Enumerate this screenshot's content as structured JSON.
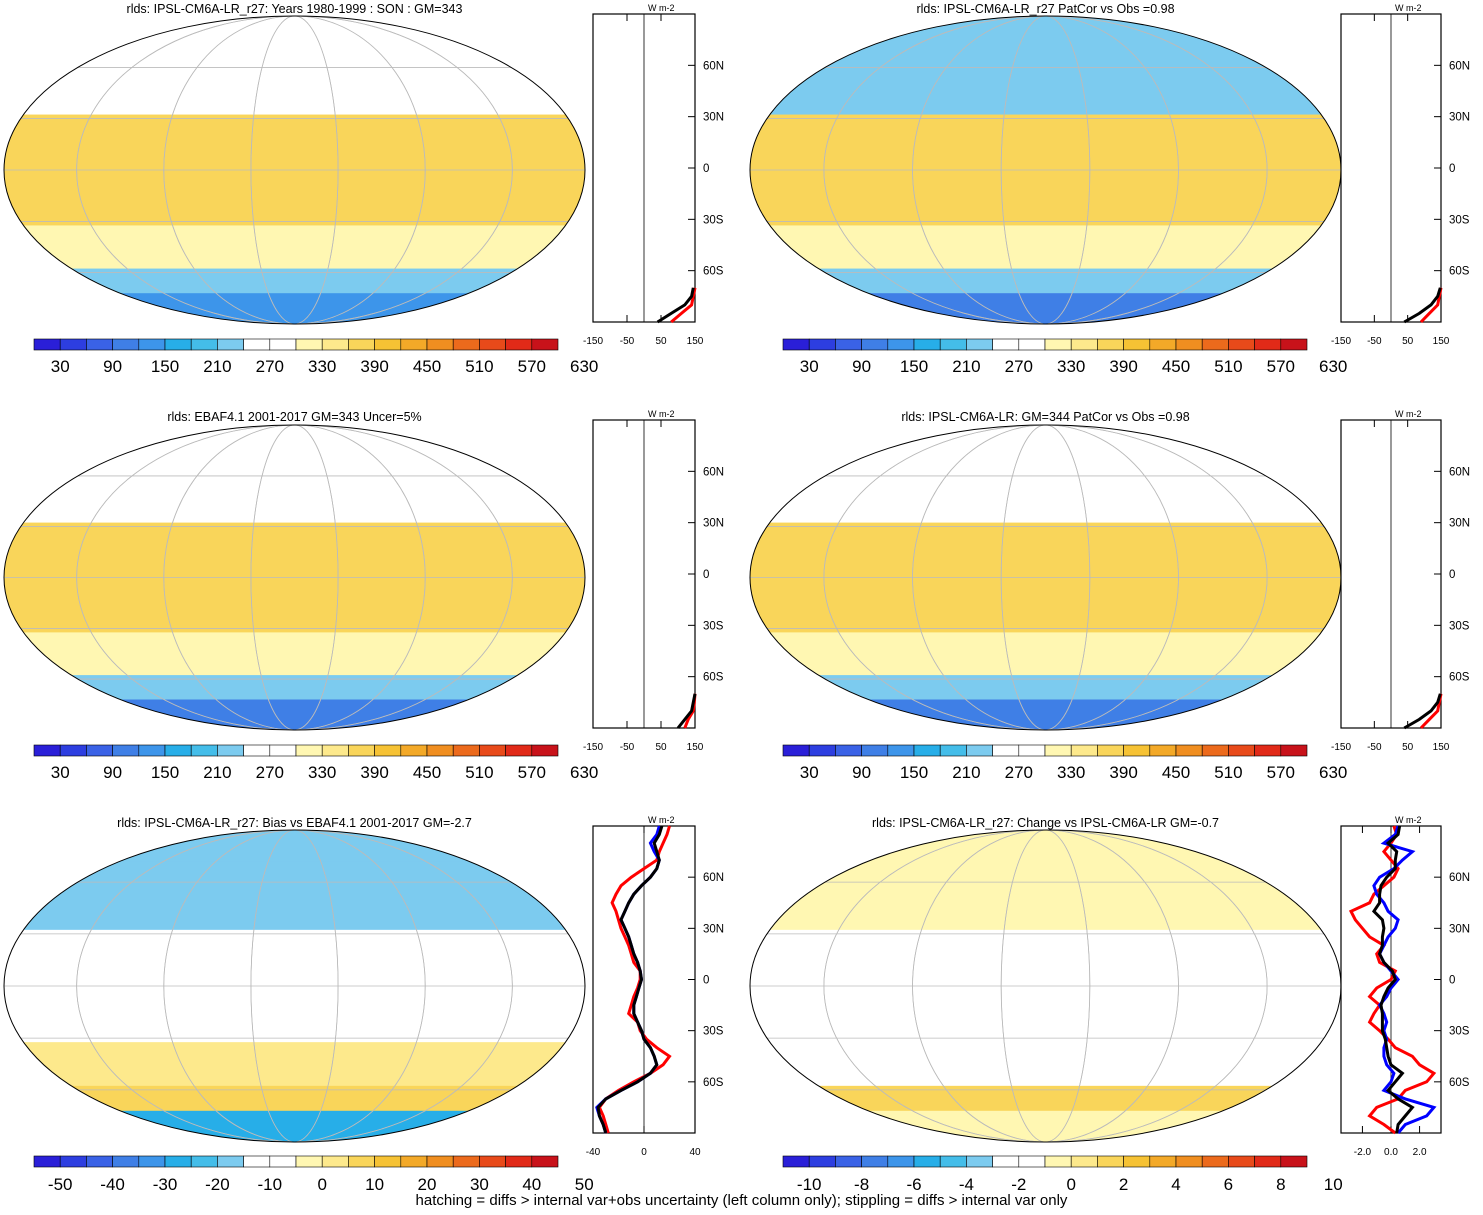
{
  "footnote": "hatching = diffs > internal var+obs uncertainty (left column only); stippling = diffs > internal var only",
  "colors": {
    "scale": [
      "#2a1fd8",
      "#2d3ee0",
      "#3a62e6",
      "#3f7fe6",
      "#3d95ea",
      "#27aee8",
      "#44bde9",
      "#7ccbef",
      "#ffffff",
      "#ffffff",
      "#fff7b2",
      "#fde98c",
      "#f9d55a",
      "#f6c234",
      "#f3a928",
      "#f08e20",
      "#ec6a1c",
      "#e84a1a",
      "#e12a18",
      "#c8121a"
    ],
    "land_outline": "#000000",
    "grid": "#bbbbbb",
    "profile_red": "#ff0000",
    "profile_blue": "#0000ff",
    "profile_black": "#000000"
  },
  "chart_data": [
    {
      "type": "heatmap",
      "panel": "model_mean",
      "title": "rlds: IPSL-CM6A-LR_r27: Years 1980-1999 : SON : GM=343",
      "colorbar_labels": [
        "30",
        "90",
        "150",
        "210",
        "270",
        "330",
        "390",
        "450",
        "510",
        "570",
        "630"
      ],
      "field": {
        "tropics": 420,
        "midlat_north": 280,
        "midlat_south": 330,
        "southern_ocean": 240,
        "antarctica": 140
      },
      "profile": {
        "unit_label": "W m-2",
        "x_ticks": [
          "-150",
          "-50",
          "50",
          "150"
        ],
        "xlim": [
          -150,
          150
        ],
        "y_ticks": [
          "60N",
          "30N",
          "0",
          "30S",
          "60S"
        ],
        "series": [
          {
            "color": "red",
            "lat": [
              -90,
              -85,
              -80,
              -75,
              -70
            ],
            "values": [
              80,
              110,
              140,
              145,
              150
            ]
          },
          {
            "color": "black",
            "lat": [
              -90,
              -85,
              -80,
              -75,
              -70
            ],
            "values": [
              40,
              80,
              120,
              140,
              145
            ]
          }
        ]
      }
    },
    {
      "type": "heatmap",
      "panel": "patcor_r27",
      "title": "rlds: IPSL-CM6A-LR_r27 PatCor vs Obs =0.98",
      "colorbar_labels": [
        "30",
        "90",
        "150",
        "210",
        "270",
        "330",
        "390",
        "450",
        "510",
        "570",
        "630"
      ],
      "field": {
        "tropics": 410,
        "midlat_north": 260,
        "midlat_south": 330,
        "southern_ocean": 250,
        "antarctica": 130
      },
      "profile": {
        "unit_label": "W m-2",
        "x_ticks": [
          "-150",
          "-50",
          "50",
          "150"
        ],
        "xlim": [
          -150,
          150
        ],
        "y_ticks": [
          "60N",
          "30N",
          "0",
          "30S",
          "60S"
        ],
        "series": [
          {
            "color": "red",
            "lat": [
              -90,
              -85,
              -80,
              -75,
              -70
            ],
            "values": [
              90,
              115,
              140,
              145,
              150
            ]
          },
          {
            "color": "black",
            "lat": [
              -90,
              -85,
              -80,
              -75,
              -70
            ],
            "values": [
              40,
              85,
              120,
              140,
              148
            ]
          }
        ]
      }
    },
    {
      "type": "heatmap",
      "panel": "obs",
      "title": "rlds: EBAF4.1 2001-2017 GM=343 Uncer=5%",
      "colorbar_labels": [
        "30",
        "90",
        "150",
        "210",
        "270",
        "330",
        "390",
        "450",
        "510",
        "570",
        "630"
      ],
      "field": {
        "tropics": 420,
        "midlat_north": 290,
        "midlat_south": 330,
        "southern_ocean": 250,
        "antarctica": 130
      },
      "profile": {
        "unit_label": "W m-2",
        "x_ticks": [
          "-150",
          "-50",
          "50",
          "150"
        ],
        "xlim": [
          -150,
          150
        ],
        "y_ticks": [
          "60N",
          "30N",
          "0",
          "30S",
          "60S"
        ],
        "series": [
          {
            "color": "red",
            "lat": [
              -90,
              -85,
              -80,
              -75,
              -70
            ],
            "values": [
              120,
              130,
              145,
              148,
              150
            ]
          },
          {
            "color": "black",
            "lat": [
              -90,
              -85,
              -80,
              -75,
              -70
            ],
            "values": [
              100,
              120,
              140,
              145,
              150
            ]
          }
        ]
      }
    },
    {
      "type": "heatmap",
      "panel": "ensemble",
      "title": "rlds: IPSL-CM6A-LR: GM=344 PatCor vs Obs =0.98",
      "colorbar_labels": [
        "30",
        "90",
        "150",
        "210",
        "270",
        "330",
        "390",
        "450",
        "510",
        "570",
        "630"
      ],
      "field": {
        "tropics": 410,
        "midlat_north": 270,
        "midlat_south": 330,
        "southern_ocean": 250,
        "antarctica": 130
      },
      "profile": {
        "unit_label": "W m-2",
        "x_ticks": [
          "-150",
          "-50",
          "50",
          "150"
        ],
        "xlim": [
          -150,
          150
        ],
        "y_ticks": [
          "60N",
          "30N",
          "0",
          "30S",
          "60S"
        ],
        "series": [
          {
            "color": "red",
            "lat": [
              -90,
              -85,
              -80,
              -75,
              -70
            ],
            "values": [
              90,
              115,
              140,
              145,
              150
            ]
          },
          {
            "color": "black",
            "lat": [
              -90,
              -85,
              -80,
              -75,
              -70
            ],
            "values": [
              40,
              85,
              120,
              140,
              148
            ]
          }
        ]
      }
    },
    {
      "type": "heatmap",
      "panel": "bias",
      "title": "rlds: IPSL-CM6A-LR_r27: Bias vs EBAF4.1 2001-2017  GM=-2.7",
      "colorbar_labels": [
        "-50",
        "-40",
        "-30",
        "-20",
        "-10",
        "0",
        "10",
        "20",
        "30",
        "40",
        "50"
      ],
      "field": {
        "tropics": -8,
        "midlat_north": -12,
        "midlat_south": 10,
        "southern_ocean": 12,
        "antarctica": -25
      },
      "profile": {
        "unit_label": "W m-2",
        "x_ticks": [
          "-40",
          "0",
          "40"
        ],
        "xlim": [
          -40,
          40
        ],
        "y_ticks": [
          "60N",
          "30N",
          "0",
          "30S",
          "60S"
        ],
        "series": [
          {
            "color": "red",
            "lat": [
              -90,
              -85,
              -80,
              -75,
              -70,
              -65,
              -60,
              -55,
              -50,
              -45,
              -40,
              -35,
              -30,
              -25,
              -20,
              -15,
              -10,
              -5,
              0,
              5,
              10,
              15,
              20,
              25,
              30,
              35,
              40,
              45,
              50,
              55,
              60,
              65,
              70,
              75,
              80,
              85,
              90
            ],
            "values": [
              -28,
              -30,
              -32,
              -35,
              -30,
              -20,
              -8,
              5,
              15,
              20,
              10,
              2,
              -3,
              -5,
              -12,
              -10,
              -8,
              -5,
              -3,
              -3,
              -8,
              -10,
              -12,
              -15,
              -18,
              -20,
              -22,
              -25,
              -22,
              -18,
              -10,
              0,
              10,
              12,
              15,
              18,
              20
            ]
          },
          {
            "color": "blue",
            "lat": [
              -90,
              -85,
              -80,
              -75,
              -70,
              -65,
              -60,
              -55,
              -50,
              -45,
              -40,
              -35,
              -30,
              -25,
              -20,
              -15,
              -10,
              -5,
              0,
              5,
              10,
              15,
              20,
              25,
              30,
              35,
              40,
              45,
              50,
              55,
              60,
              65,
              70,
              75,
              80,
              85,
              90
            ],
            "values": [
              -30,
              -32,
              -35,
              -37,
              -30,
              -18,
              -5,
              5,
              10,
              8,
              5,
              0,
              -2,
              -5,
              -8,
              -8,
              -6,
              -4,
              -2,
              -3,
              -5,
              -8,
              -10,
              -12,
              -15,
              -18,
              -15,
              -12,
              -8,
              -2,
              5,
              10,
              12,
              8,
              5,
              10,
              12
            ]
          },
          {
            "color": "black",
            "lat": [
              -90,
              -85,
              -80,
              -75,
              -70,
              -65,
              -60,
              -55,
              -50,
              -45,
              -40,
              -35,
              -30,
              -25,
              -20,
              -15,
              -10,
              -5,
              0,
              5,
              10,
              15,
              20,
              25,
              30,
              35,
              40,
              45,
              50,
              55,
              60,
              65,
              70,
              75,
              80,
              85,
              90
            ],
            "values": [
              -30,
              -32,
              -35,
              -36,
              -30,
              -18,
              -5,
              5,
              10,
              8,
              5,
              0,
              -2,
              -5,
              -8,
              -8,
              -6,
              -4,
              -2,
              -3,
              -5,
              -8,
              -10,
              -12,
              -15,
              -18,
              -15,
              -12,
              -8,
              -2,
              5,
              10,
              12,
              10,
              8,
              12,
              14
            ]
          }
        ]
      }
    },
    {
      "type": "heatmap",
      "panel": "change",
      "title": "rlds: IPSL-CM6A-LR_r27: Change vs IPSL-CM6A-LR GM=-0.7",
      "colorbar_labels": [
        "-10",
        "-8",
        "-6",
        "-4",
        "-2",
        "0",
        "2",
        "4",
        "6",
        "8",
        "10"
      ],
      "field": {
        "tropics": -1,
        "midlat_north": 0.5,
        "midlat_south": -1.5,
        "southern_ocean": 3,
        "antarctica": 0
      },
      "profile": {
        "unit_label": "W m-2",
        "x_ticks": [
          "-2.0",
          "0.0",
          "2.0"
        ],
        "xlim": [
          -3.5,
          3.5
        ],
        "y_ticks": [
          "60N",
          "30N",
          "0",
          "30S",
          "60S"
        ],
        "series": [
          {
            "color": "red",
            "lat": [
              -90,
              -85,
              -80,
              -75,
              -70,
              -65,
              -60,
              -55,
              -50,
              -45,
              -40,
              -35,
              -30,
              -25,
              -20,
              -15,
              -10,
              -5,
              0,
              5,
              10,
              15,
              20,
              25,
              30,
              35,
              40,
              45,
              50,
              55,
              60,
              65,
              70,
              75,
              80,
              85,
              90
            ],
            "values": [
              0.3,
              -0.5,
              -1.5,
              -1.0,
              0.5,
              1.0,
              2.5,
              3.0,
              2.0,
              1.5,
              0.3,
              -0.2,
              -0.8,
              -1.5,
              -1.2,
              -0.8,
              -1.5,
              -1.0,
              0.0,
              0.3,
              -0.8,
              -1.0,
              -0.5,
              -1.5,
              -2.0,
              -2.5,
              -2.8,
              -1.5,
              -1.2,
              -0.5,
              0.2,
              0.5,
              0.0,
              -0.5,
              0.0,
              0.4,
              0.2
            ]
          },
          {
            "color": "blue",
            "lat": [
              -90,
              -85,
              -80,
              -75,
              -70,
              -65,
              -60,
              -55,
              -50,
              -45,
              -40,
              -35,
              -30,
              -25,
              -20,
              -15,
              -10,
              -5,
              0,
              5,
              10,
              15,
              20,
              25,
              30,
              35,
              40,
              45,
              50,
              55,
              60,
              65,
              70,
              75,
              80,
              85,
              90
            ],
            "values": [
              0.5,
              1.0,
              2.5,
              3.0,
              1.0,
              -0.5,
              0.0,
              0.2,
              -0.3,
              -0.5,
              -0.5,
              -0.3,
              -0.5,
              -0.3,
              -0.5,
              -0.8,
              -0.3,
              0.0,
              0.5,
              0.0,
              -0.5,
              -0.8,
              -0.5,
              -0.2,
              0.3,
              0.5,
              -0.2,
              -0.5,
              -1.0,
              -1.2,
              -0.8,
              0.2,
              0.8,
              1.5,
              -0.5,
              0.3,
              0.5
            ]
          },
          {
            "color": "black",
            "lat": [
              -90,
              -85,
              -80,
              -75,
              -70,
              -65,
              -60,
              -55,
              -50,
              -45,
              -40,
              -35,
              -30,
              -25,
              -20,
              -15,
              -10,
              -5,
              0,
              5,
              10,
              15,
              20,
              25,
              30,
              35,
              40,
              45,
              50,
              55,
              60,
              65,
              70,
              75,
              80,
              85,
              90
            ],
            "values": [
              0.4,
              0.5,
              1.0,
              1.5,
              0.5,
              -0.2,
              0.3,
              0.8,
              0.0,
              -0.2,
              -0.3,
              -0.4,
              -0.6,
              -0.6,
              -0.6,
              -0.7,
              -0.5,
              -0.2,
              0.3,
              0.1,
              -0.5,
              -0.8,
              -0.6,
              -0.6,
              -0.5,
              -0.6,
              -1.2,
              -0.8,
              -0.8,
              -0.7,
              -0.3,
              0.3,
              0.3,
              0.4,
              -0.2,
              0.5,
              0.6
            ]
          }
        ]
      }
    }
  ]
}
